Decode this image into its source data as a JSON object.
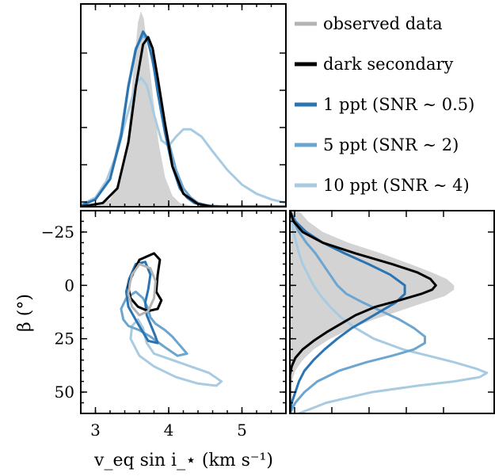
{
  "colors": {
    "observed": "#b4b4b4",
    "observed_fill": "#d3d3d3",
    "dark": "#000000",
    "ppt1": "#2b74b1",
    "ppt5": "#6ca5cf",
    "ppt10": "#a8cbe2"
  },
  "legend": [
    {
      "label": "observed data",
      "color_key": "observed"
    },
    {
      "label": "dark secondary",
      "color_key": "dark"
    },
    {
      "label": "1 ppt (SNR ∼ 0.5)",
      "color_key": "ppt1"
    },
    {
      "label": "5 ppt (SNR ∼ 2)",
      "color_key": "ppt5"
    },
    {
      "label": "10 ppt (SNR ∼ 4)",
      "color_key": "ppt10"
    }
  ],
  "chart_data": [
    {
      "type": "area",
      "panel": "top",
      "xlim": [
        2.8,
        5.6
      ],
      "xticks": [
        3,
        4,
        5
      ],
      "ylim": [
        0,
        1.1
      ],
      "observed": {
        "x": [
          2.8,
          3.0,
          3.2,
          3.35,
          3.45,
          3.52,
          3.58,
          3.62,
          3.66,
          3.7,
          3.75,
          3.8,
          3.86,
          3.95,
          4.05,
          4.15,
          4.3,
          4.5,
          5.6
        ],
        "y": [
          0.0,
          0.01,
          0.04,
          0.15,
          0.4,
          0.75,
          1.0,
          1.06,
          1.02,
          0.88,
          0.72,
          0.55,
          0.35,
          0.16,
          0.06,
          0.02,
          0.005,
          0.0,
          0.0
        ]
      },
      "series": [
        {
          "color_key": "dark",
          "x": [
            2.8,
            3.1,
            3.3,
            3.45,
            3.55,
            3.65,
            3.72,
            3.78,
            3.85,
            3.95,
            4.05,
            4.2,
            4.4,
            4.6,
            5.6
          ],
          "y": [
            0.0,
            0.02,
            0.1,
            0.35,
            0.65,
            0.88,
            0.92,
            0.86,
            0.7,
            0.45,
            0.22,
            0.07,
            0.015,
            0.0,
            0.0
          ]
        },
        {
          "color_key": "ppt1",
          "x": [
            2.8,
            3.0,
            3.2,
            3.35,
            3.45,
            3.55,
            3.65,
            3.7,
            3.78,
            3.85,
            3.95,
            4.05,
            4.15,
            4.25,
            4.35,
            4.5,
            4.7,
            5.6
          ],
          "y": [
            0.005,
            0.04,
            0.15,
            0.38,
            0.65,
            0.85,
            0.95,
            0.92,
            0.8,
            0.62,
            0.4,
            0.22,
            0.1,
            0.05,
            0.02,
            0.005,
            0.0,
            0.0
          ]
        },
        {
          "color_key": "ppt5",
          "x": [
            2.8,
            3.0,
            3.2,
            3.35,
            3.45,
            3.55,
            3.65,
            3.72,
            3.8,
            3.9,
            4.0,
            4.1,
            4.2,
            4.3,
            4.4,
            4.55,
            4.8,
            5.6
          ],
          "y": [
            0.005,
            0.04,
            0.15,
            0.4,
            0.66,
            0.86,
            0.93,
            0.9,
            0.75,
            0.55,
            0.35,
            0.2,
            0.1,
            0.05,
            0.02,
            0.005,
            0.0,
            0.0
          ]
        },
        {
          "color_key": "ppt10",
          "x": [
            2.8,
            3.0,
            3.15,
            3.3,
            3.45,
            3.55,
            3.62,
            3.7,
            3.8,
            3.9,
            4.0,
            4.1,
            4.2,
            4.3,
            4.45,
            4.6,
            4.8,
            5.0,
            5.2,
            5.4,
            5.6
          ],
          "y": [
            0.01,
            0.05,
            0.14,
            0.3,
            0.52,
            0.66,
            0.7,
            0.66,
            0.5,
            0.36,
            0.33,
            0.38,
            0.42,
            0.42,
            0.38,
            0.3,
            0.2,
            0.12,
            0.07,
            0.04,
            0.02
          ]
        }
      ]
    },
    {
      "type": "scatter",
      "panel": "bottom-left",
      "xlabel": "v_eq sin i_⋆ (km s⁻¹)",
      "ylabel": "β (°)",
      "xlim": [
        2.8,
        5.6
      ],
      "ylim": [
        -35,
        60
      ],
      "xticks": [
        3,
        4,
        5
      ],
      "yticks": [
        -25,
        0,
        25,
        50
      ],
      "yticklabels": [
        "−25",
        "0",
        "25",
        "50"
      ],
      "contours": [
        {
          "color_key": "observed",
          "x": [
            3.5,
            3.6,
            3.75,
            3.82,
            3.8,
            3.72,
            3.6,
            3.5,
            3.45,
            3.47,
            3.5
          ],
          "y": [
            -5,
            -10,
            -8,
            -2,
            6,
            12,
            14,
            10,
            4,
            -1,
            -5
          ]
        },
        {
          "color_key": "dark",
          "x": [
            3.48,
            3.6,
            3.8,
            3.88,
            3.85,
            3.83,
            3.9,
            3.85,
            3.72,
            3.58,
            3.48,
            3.45,
            3.48
          ],
          "y": [
            -3,
            -12,
            -15,
            -12,
            -5,
            3,
            7,
            11,
            12,
            10,
            6,
            1,
            -3
          ]
        },
        {
          "color_key": "ppt1",
          "x": [
            3.46,
            3.55,
            3.68,
            3.75,
            3.72,
            3.68,
            3.7,
            3.82,
            3.85,
            3.72,
            3.58,
            3.45,
            3.42,
            3.46
          ],
          "y": [
            -3,
            -10,
            -11,
            -5,
            2,
            8,
            14,
            24,
            27,
            26,
            18,
            10,
            3,
            -3
          ]
        },
        {
          "color_key": "ppt5",
          "x": [
            3.42,
            3.55,
            3.65,
            3.72,
            3.75,
            3.82,
            3.95,
            4.05,
            4.15,
            4.25,
            4.12,
            3.95,
            3.75,
            3.6,
            3.45,
            3.38,
            3.35,
            3.42
          ],
          "y": [
            6,
            3,
            6,
            11,
            15,
            18,
            21,
            24,
            28,
            32,
            33,
            29,
            24,
            21,
            19,
            16,
            11,
            6
          ]
        },
        {
          "color_key": "ppt10",
          "x": [
            3.5,
            3.58,
            3.65,
            3.7,
            3.8,
            4.05,
            4.3,
            4.55,
            4.72,
            4.65,
            4.4,
            4.1,
            3.8,
            3.6,
            3.48,
            3.5
          ],
          "y": [
            19,
            16,
            20,
            27,
            32,
            35,
            38,
            41,
            45,
            47,
            46,
            43,
            38,
            33,
            25,
            19
          ]
        }
      ]
    },
    {
      "type": "line",
      "panel": "bottom-right",
      "orientation": "horizontal",
      "ylim": [
        -35,
        60
      ],
      "xlim": [
        0,
        1.12
      ],
      "observed": {
        "y": [
          -35,
          -30,
          -25,
          -20,
          -15,
          -10,
          -6,
          -3,
          0,
          2,
          5,
          8,
          12,
          16,
          20,
          25,
          30,
          35,
          40,
          45,
          50,
          60
        ],
        "x": [
          0.05,
          0.1,
          0.18,
          0.32,
          0.5,
          0.66,
          0.78,
          0.86,
          0.9,
          0.9,
          0.85,
          0.74,
          0.6,
          0.46,
          0.34,
          0.22,
          0.13,
          0.07,
          0.03,
          0.01,
          0.0,
          0.0
        ]
      },
      "series": [
        {
          "color_key": "dark",
          "y": [
            -35,
            -30,
            -25,
            -20,
            -15,
            -10,
            -6,
            -3,
            0,
            2,
            4,
            7,
            10,
            14,
            18,
            22,
            26,
            30,
            34,
            38,
            42,
            50,
            60
          ],
          "x": [
            0.0,
            0.02,
            0.07,
            0.18,
            0.36,
            0.56,
            0.7,
            0.77,
            0.8,
            0.78,
            0.72,
            0.6,
            0.47,
            0.36,
            0.28,
            0.2,
            0.13,
            0.07,
            0.03,
            0.01,
            0.0,
            0.0,
            0.0
          ]
        },
        {
          "color_key": "ppt1",
          "y": [
            -35,
            -30,
            -25,
            -20,
            -15,
            -10,
            -5,
            0,
            4,
            8,
            12,
            16,
            20,
            25,
            30,
            35,
            40,
            45,
            50,
            55,
            60
          ],
          "x": [
            0.0,
            0.03,
            0.09,
            0.18,
            0.3,
            0.43,
            0.55,
            0.63,
            0.63,
            0.58,
            0.5,
            0.42,
            0.34,
            0.26,
            0.19,
            0.13,
            0.08,
            0.05,
            0.03,
            0.01,
            0.0
          ]
        },
        {
          "color_key": "ppt5",
          "y": [
            -35,
            -30,
            -25,
            -20,
            -15,
            -10,
            -5,
            0,
            4,
            8,
            12,
            16,
            20,
            24,
            27,
            30,
            33,
            36,
            40,
            45,
            50,
            55,
            60
          ],
          "x": [
            0.0,
            0.02,
            0.05,
            0.09,
            0.14,
            0.18,
            0.22,
            0.26,
            0.31,
            0.4,
            0.5,
            0.6,
            0.68,
            0.74,
            0.74,
            0.68,
            0.56,
            0.42,
            0.27,
            0.15,
            0.08,
            0.03,
            0.0
          ]
        },
        {
          "color_key": "ppt10",
          "y": [
            -35,
            -25,
            -15,
            -10,
            -5,
            0,
            5,
            10,
            15,
            20,
            25,
            30,
            33,
            36,
            39,
            41,
            43,
            45,
            47,
            50,
            55,
            60
          ],
          "x": [
            0.0,
            0.02,
            0.05,
            0.07,
            0.1,
            0.13,
            0.17,
            0.22,
            0.28,
            0.36,
            0.46,
            0.62,
            0.76,
            0.9,
            1.02,
            1.08,
            1.04,
            0.9,
            0.7,
            0.45,
            0.2,
            0.05
          ]
        }
      ]
    }
  ]
}
